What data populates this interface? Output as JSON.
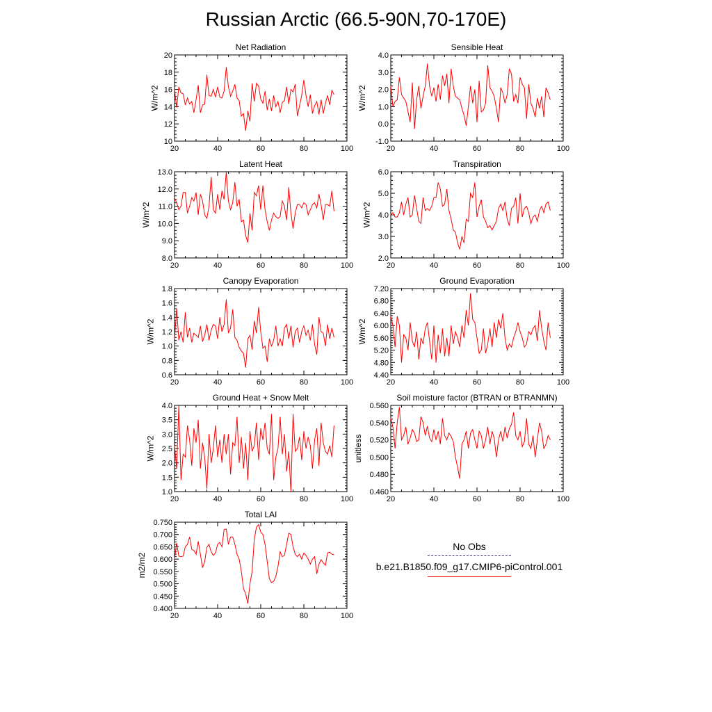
{
  "figure_title": "Russian Arctic (66.5-90N,70-170E)",
  "legend": {
    "obs_label": "No Obs",
    "model_label": "b.e21.B1850.f09_g17.CMIP6-piControl.001",
    "obs_color": "#3030a0",
    "model_color": "#ff0000"
  },
  "chart_data": [
    {
      "type": "line",
      "title": "Net Radiation",
      "ylabel": "W/m^2",
      "xlim": [
        20,
        100
      ],
      "xticks": [
        20,
        40,
        60,
        80,
        100
      ],
      "ylim": [
        10,
        20
      ],
      "yticks": [
        10,
        12,
        14,
        16,
        18,
        20
      ],
      "ytick_labels": [
        "10",
        "12",
        "14",
        "16",
        "18",
        "20"
      ],
      "x_start": 20,
      "values": [
        16.0,
        13.9,
        16.3,
        15.6,
        15.5,
        14.2,
        15.0,
        14.3,
        14.6,
        13.3,
        14.8,
        16.5,
        13.3,
        14.2,
        14.3,
        17.7,
        15.3,
        15.2,
        16.0,
        15.1,
        16.3,
        15.1,
        15.0,
        15.8,
        18.6,
        16.3,
        15.2,
        15.8,
        16.6,
        15.0,
        14.7,
        12.9,
        13.2,
        11.2,
        13.5,
        12.3,
        16.7,
        14.6,
        16.7,
        16.4,
        14.9,
        14.4,
        15.8,
        13.6,
        14.9,
        13.5,
        15.3,
        14.0,
        14.6,
        13.3,
        14.5,
        14.7,
        16.3,
        14.3,
        16.0,
        15.7,
        16.6,
        12.9,
        14.1,
        15.3,
        17.1,
        15.3,
        14.0,
        15.4,
        13.2,
        14.1,
        14.6,
        13.1,
        14.8,
        13.2,
        14.4,
        15.3,
        14.2,
        15.9,
        15.4
      ]
    },
    {
      "type": "line",
      "title": "Sensible Heat",
      "ylabel": "W/m^2",
      "xlim": [
        20,
        100
      ],
      "xticks": [
        20,
        40,
        60,
        80,
        100
      ],
      "ylim": [
        -1,
        4
      ],
      "yticks": [
        -1,
        0,
        1,
        2,
        3,
        4
      ],
      "ytick_labels": [
        "-1.0",
        "0.0",
        "1.0",
        "2.0",
        "3.0",
        "4.0"
      ],
      "x_start": 20,
      "values": [
        2.2,
        1.0,
        1.3,
        1.4,
        2.7,
        1.7,
        1.5,
        1.3,
        0.7,
        0.1,
        2.4,
        -0.3,
        1.4,
        2.2,
        0.9,
        1.6,
        2.2,
        3.5,
        2.2,
        1.6,
        2.1,
        1.3,
        2.3,
        1.4,
        2.8,
        2.2,
        2.9,
        1.2,
        3.2,
        2.2,
        1.6,
        1.5,
        1.4,
        0.9,
        0.5,
        -0.1,
        1.0,
        2.2,
        1.2,
        2.0,
        0.1,
        2.5,
        0.7,
        0.8,
        1.2,
        3.4,
        2.1,
        1.9,
        1.6,
        0.9,
        0.1,
        2.1,
        1.8,
        1.2,
        1.7,
        3.2,
        2.9,
        1.3,
        1.7,
        1.2,
        2.7,
        2.3,
        2.1,
        0.3,
        2.3,
        1.2,
        0.9,
        0.4,
        1.5,
        0.9,
        1.6,
        0.4,
        2.1,
        1.8,
        1.4
      ]
    },
    {
      "type": "line",
      "title": "Latent Heat",
      "ylabel": "W/m^2",
      "xlim": [
        20,
        100
      ],
      "xticks": [
        20,
        40,
        60,
        80,
        100
      ],
      "ylim": [
        8,
        13
      ],
      "yticks": [
        8,
        9,
        10,
        11,
        12,
        13
      ],
      "ytick_labels": [
        "8.0",
        "9.0",
        "10.0",
        "11.0",
        "12.0",
        "13.0"
      ],
      "x_start": 20,
      "values": [
        11.5,
        11.2,
        10.8,
        11.0,
        11.8,
        11.8,
        10.6,
        11.0,
        11.5,
        11.3,
        11.8,
        10.5,
        11.7,
        11.3,
        10.5,
        10.3,
        11.0,
        12.7,
        10.8,
        10.6,
        11.7,
        10.8,
        11.9,
        11.4,
        13.0,
        11.3,
        10.8,
        11.2,
        12.4,
        11.0,
        11.4,
        10.1,
        10.2,
        9.3,
        8.9,
        10.6,
        9.6,
        11.8,
        11.6,
        12.2,
        10.8,
        12.2,
        10.8,
        10.1,
        9.6,
        10.2,
        10.6,
        10.4,
        10.3,
        10.4,
        11.3,
        11.0,
        10.2,
        12.1,
        10.6,
        9.7,
        10.6,
        11.1,
        11.1,
        10.9,
        11.2,
        11.1,
        10.5,
        10.8,
        11.1,
        11.2,
        10.9,
        11.7,
        11.1,
        10.2,
        11.1,
        11.1,
        11.0,
        11.9,
        10.7
      ]
    },
    {
      "type": "line",
      "title": "Transpiration",
      "ylabel": "W/m^2",
      "xlim": [
        20,
        100
      ],
      "xticks": [
        20,
        40,
        60,
        80,
        100
      ],
      "ylim": [
        2,
        6
      ],
      "yticks": [
        2,
        3,
        4,
        5,
        6
      ],
      "ytick_labels": [
        "2.0",
        "3.0",
        "4.0",
        "5.0",
        "6.0"
      ],
      "x_start": 20,
      "values": [
        4.0,
        4.1,
        3.9,
        3.9,
        4.1,
        4.6,
        4.0,
        4.5,
        4.8,
        3.9,
        4.0,
        4.9,
        4.3,
        3.7,
        3.6,
        4.8,
        4.2,
        4.3,
        4.2,
        4.4,
        4.8,
        4.8,
        5.5,
        5.2,
        4.4,
        4.5,
        5.2,
        4.2,
        3.8,
        3.3,
        3.2,
        2.7,
        2.4,
        3.0,
        2.7,
        3.8,
        3.7,
        5.0,
        4.8,
        5.5,
        3.9,
        4.4,
        4.7,
        3.9,
        3.7,
        3.4,
        3.5,
        3.3,
        3.5,
        3.7,
        4.3,
        4.5,
        4.2,
        4.6,
        3.8,
        3.5,
        4.3,
        4.4,
        4.8,
        3.6,
        5.0,
        3.9,
        4.3,
        4.4,
        4.1,
        3.6,
        3.9,
        4.0,
        3.7,
        4.2,
        4.4,
        4.1,
        4.5,
        4.6,
        4.2
      ]
    },
    {
      "type": "line",
      "title": "Canopy Evaporation",
      "ylabel": "W/m^2",
      "xlim": [
        20,
        100
      ],
      "xticks": [
        20,
        40,
        60,
        80,
        100
      ],
      "ylim": [
        0.6,
        1.8
      ],
      "yticks": [
        0.6,
        0.8,
        1.0,
        1.2,
        1.4,
        1.6,
        1.8
      ],
      "ytick_labels": [
        "0.6",
        "0.8",
        "1.0",
        "1.2",
        "1.4",
        "1.6",
        "1.8"
      ],
      "x_start": 20,
      "values": [
        1.1,
        1.52,
        1.08,
        1.2,
        1.05,
        1.47,
        1.12,
        1.25,
        1.05,
        1.18,
        1.15,
        1.12,
        1.28,
        1.06,
        1.15,
        1.3,
        1.08,
        1.22,
        1.3,
        1.28,
        1.1,
        1.4,
        1.2,
        1.3,
        1.65,
        1.18,
        1.25,
        1.51,
        1.12,
        1.08,
        0.98,
        0.93,
        0.9,
        0.7,
        1.1,
        1.15,
        0.95,
        1.35,
        1.18,
        1.54,
        1.2,
        0.97,
        1.0,
        0.78,
        1.1,
        1.0,
        1.08,
        1.28,
        1.0,
        1.1,
        1.0,
        1.25,
        1.3,
        1.1,
        1.28,
        0.98,
        1.2,
        1.25,
        1.05,
        1.2,
        1.28,
        1.15,
        1.22,
        1.08,
        1.3,
        1.02,
        0.88,
        1.4,
        1.2,
        1.18,
        1.0,
        1.3,
        1.1,
        1.25,
        1.12
      ]
    },
    {
      "type": "line",
      "title": "Ground Evaporation",
      "ylabel": "W/m^2",
      "xlim": [
        20,
        100
      ],
      "xticks": [
        20,
        40,
        60,
        80,
        100
      ],
      "ylim": [
        4.4,
        7.2
      ],
      "yticks": [
        4.4,
        4.8,
        5.2,
        5.6,
        6.0,
        6.4,
        6.8,
        7.2
      ],
      "ytick_labels": [
        "4.40",
        "4.80",
        "5.20",
        "5.60",
        "6.00",
        "6.40",
        "6.80",
        "7.20"
      ],
      "x_start": 20,
      "values": [
        6.3,
        6.0,
        5.3,
        6.3,
        6.0,
        4.8,
        5.7,
        5.6,
        5.2,
        6.1,
        5.5,
        5.3,
        5.8,
        4.9,
        5.6,
        5.4,
        5.9,
        6.1,
        5.5,
        4.9,
        6.0,
        4.8,
        5.7,
        5.1,
        5.9,
        5.0,
        5.6,
        5.0,
        6.0,
        5.4,
        5.8,
        5.6,
        5.3,
        6.0,
        5.6,
        6.5,
        6.0,
        7.05,
        6.2,
        6.1,
        5.6,
        5.1,
        5.2,
        5.9,
        5.1,
        5.4,
        5.9,
        5.3,
        6.1,
        5.6,
        6.2,
        5.9,
        6.4,
        5.6,
        5.2,
        5.4,
        5.3,
        5.6,
        5.8,
        6.1,
        5.8,
        5.6,
        5.3,
        5.4,
        5.8,
        5.7,
        5.9,
        6.0,
        5.5,
        6.5,
        5.9,
        5.5,
        5.2,
        6.1,
        5.6
      ]
    },
    {
      "type": "line",
      "title": "Ground Heat + Snow Melt",
      "ylabel": "W/m^2",
      "xlim": [
        20,
        100
      ],
      "xticks": [
        20,
        40,
        60,
        80,
        100
      ],
      "ylim": [
        1,
        4
      ],
      "yticks": [
        1,
        1.5,
        2,
        2.5,
        3,
        3.5,
        4
      ],
      "ytick_labels": [
        "1.0",
        "1.5",
        "2.0",
        "2.5",
        "3.0",
        "3.5",
        "4.0"
      ],
      "x_start": 20,
      "values": [
        2.6,
        1.8,
        4.0,
        1.4,
        2.3,
        2.2,
        3.3,
        2.8,
        1.9,
        3.2,
        2.7,
        3.5,
        1.8,
        2.7,
        2.2,
        1.1,
        3.0,
        2.0,
        2.5,
        3.3,
        2.2,
        2.8,
        2.0,
        3.0,
        2.3,
        3.0,
        1.6,
        2.7,
        2.6,
        3.6,
        2.0,
        2.9,
        1.8,
        2.7,
        1.4,
        3.1,
        2.4,
        2.6,
        3.4,
        2.1,
        3.2,
        2.8,
        3.4,
        2.5,
        2.3,
        3.7,
        1.4,
        2.2,
        2.5,
        3.6,
        2.3,
        3.0,
        1.7,
        2.4,
        1.0,
        3.7,
        2.4,
        2.5,
        2.9,
        2.1,
        3.1,
        2.5,
        2.9,
        2.6,
        1.8,
        2.8,
        3.2,
        1.9,
        3.4,
        2.7,
        2.4,
        2.3,
        2.6,
        2.2,
        3.3
      ]
    },
    {
      "type": "line",
      "title": "Soil moisture factor (BTRAN or BTRANMN)",
      "ylabel": "unitless",
      "xlim": [
        20,
        100
      ],
      "xticks": [
        20,
        40,
        60,
        80,
        100
      ],
      "ylim": [
        0.46,
        0.56
      ],
      "yticks": [
        0.46,
        0.48,
        0.5,
        0.52,
        0.54,
        0.56
      ],
      "ytick_labels": [
        "0.460",
        "0.480",
        "0.500",
        "0.520",
        "0.540",
        "0.560"
      ],
      "x_start": 20,
      "values": [
        0.545,
        0.535,
        0.51,
        0.54,
        0.558,
        0.52,
        0.525,
        0.535,
        0.515,
        0.522,
        0.532,
        0.528,
        0.518,
        0.52,
        0.547,
        0.54,
        0.525,
        0.536,
        0.522,
        0.518,
        0.532,
        0.52,
        0.53,
        0.515,
        0.545,
        0.525,
        0.52,
        0.528,
        0.524,
        0.518,
        0.5,
        0.488,
        0.475,
        0.515,
        0.52,
        0.53,
        0.51,
        0.528,
        0.532,
        0.52,
        0.51,
        0.53,
        0.525,
        0.51,
        0.52,
        0.535,
        0.515,
        0.53,
        0.522,
        0.5,
        0.52,
        0.53,
        0.518,
        0.535,
        0.522,
        0.533,
        0.538,
        0.552,
        0.525,
        0.52,
        0.53,
        0.512,
        0.518,
        0.545,
        0.515,
        0.51,
        0.525,
        0.5,
        0.52,
        0.54,
        0.53,
        0.51,
        0.515,
        0.525,
        0.52
      ]
    },
    {
      "type": "line",
      "title": "Total LAI",
      "ylabel": "m2/m2",
      "xlim": [
        20,
        100
      ],
      "xticks": [
        20,
        40,
        60,
        80,
        100
      ],
      "ylim": [
        0.4,
        0.75
      ],
      "yticks": [
        0.4,
        0.45,
        0.5,
        0.55,
        0.6,
        0.65,
        0.7,
        0.75
      ],
      "ytick_labels": [
        "0.400",
        "0.450",
        "0.500",
        "0.550",
        "0.600",
        "0.650",
        "0.700",
        "0.750"
      ],
      "x_start": 20,
      "values": [
        0.6,
        0.665,
        0.612,
        0.61,
        0.612,
        0.65,
        0.66,
        0.69,
        0.64,
        0.635,
        0.62,
        0.672,
        0.62,
        0.565,
        0.59,
        0.648,
        0.66,
        0.63,
        0.615,
        0.625,
        0.66,
        0.668,
        0.65,
        0.72,
        0.722,
        0.66,
        0.69,
        0.69,
        0.66,
        0.62,
        0.6,
        0.55,
        0.48,
        0.46,
        0.42,
        0.5,
        0.55,
        0.68,
        0.73,
        0.74,
        0.71,
        0.7,
        0.66,
        0.59,
        0.52,
        0.505,
        0.51,
        0.53,
        0.57,
        0.63,
        0.61,
        0.615,
        0.66,
        0.705,
        0.7,
        0.65,
        0.62,
        0.61,
        0.62,
        0.6,
        0.625,
        0.615,
        0.6,
        0.58,
        0.6,
        0.61,
        0.54,
        0.58,
        0.598,
        0.585,
        0.575,
        0.625,
        0.628,
        0.62,
        0.618
      ]
    }
  ]
}
